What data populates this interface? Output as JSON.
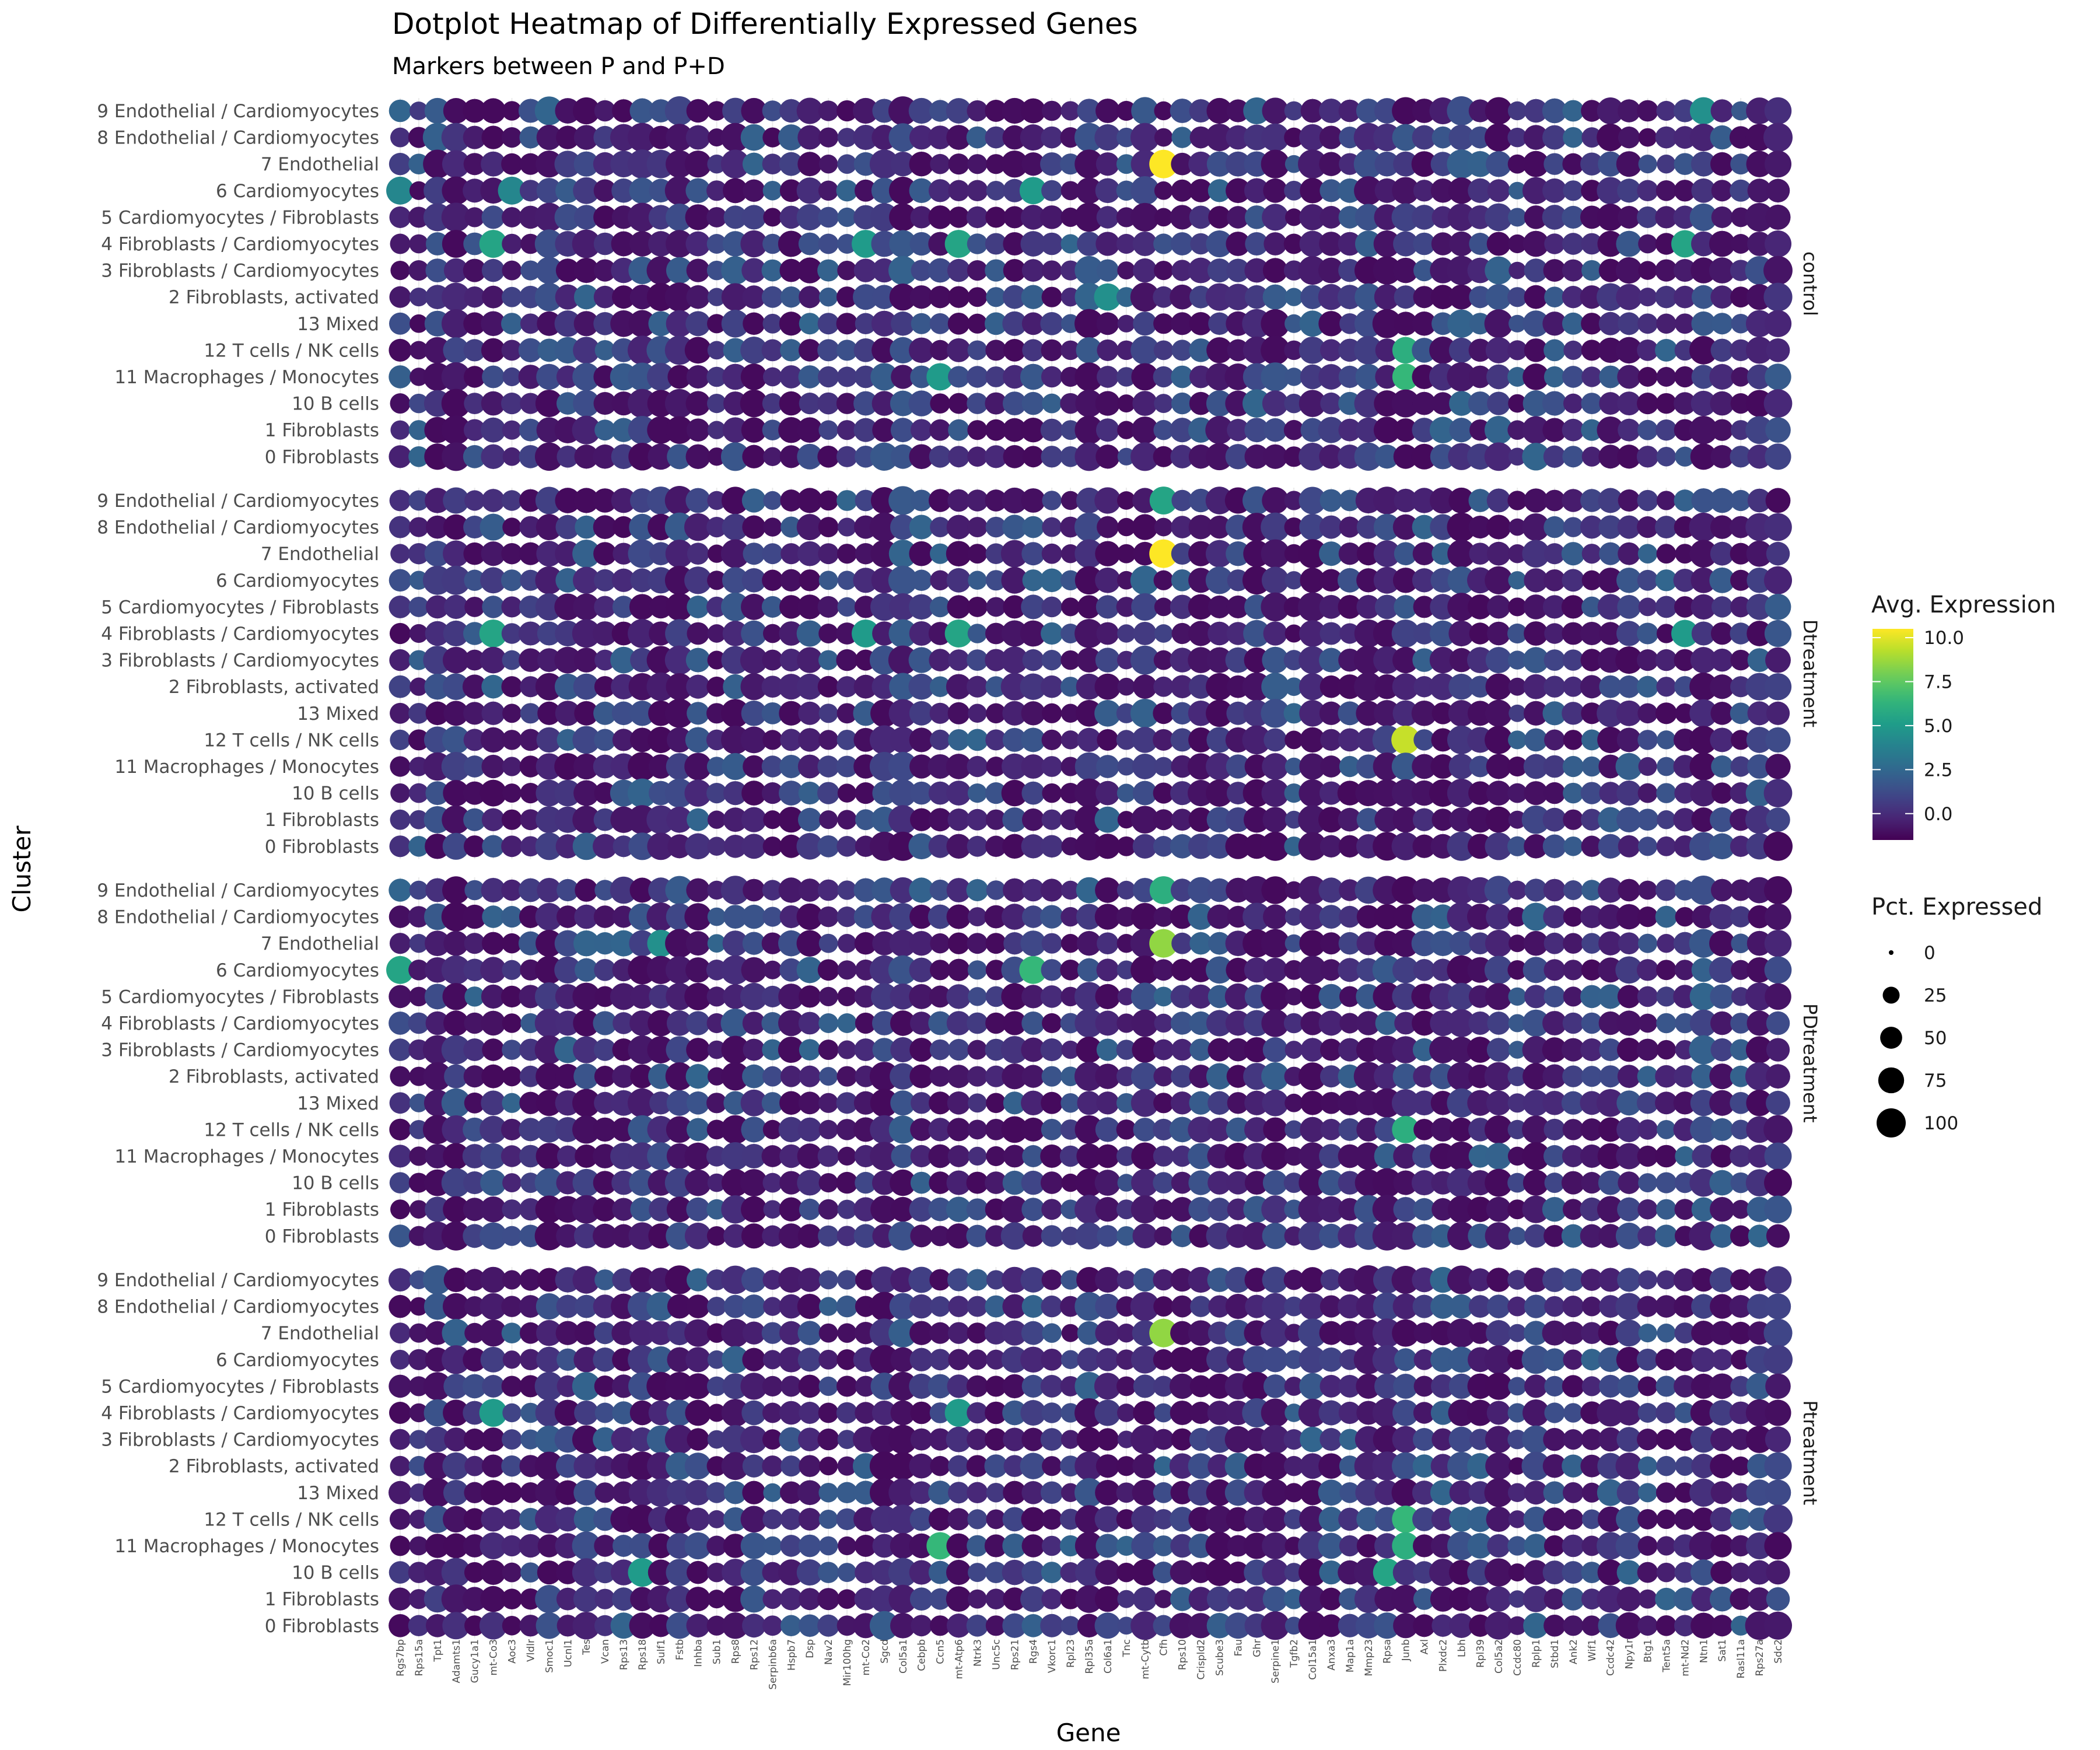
{
  "chart_data": {
    "type": "dotplot",
    "title": "Dotplot Heatmap of Differentially Expressed Genes",
    "subtitle": "Markers between P and P+D",
    "xlabel": "Gene",
    "ylabel": "Cluster",
    "clusters": [
      "9 Endothelial / Cardiomyocytes",
      "8 Endothelial / Cardiomyocytes",
      "7 Endothelial",
      "6 Cardiomyocytes",
      "5 Cardiomyocytes / Fibroblasts",
      "4 Fibroblasts / Cardiomyocytes",
      "3 Fibroblasts / Cardiomyocytes",
      "2 Fibroblasts, activated",
      "13 Mixed",
      "12 T cells / NK cells",
      "11 Macrophages / Monocytes",
      "10 B cells",
      "1 Fibroblasts",
      "0 Fibroblasts"
    ],
    "genes": [
      "Rgs7bp",
      "Rps15a",
      "Tpt1",
      "Adamts1",
      "Gucy1a1",
      "mt-Co3",
      "Aoc3",
      "Vldlr",
      "Smoc1",
      "Ucnl1",
      "Tes",
      "Vcan",
      "Rps13",
      "Rps18",
      "Sulf1",
      "Fstb",
      "Inhba",
      "Sub1",
      "Rps8",
      "Rps12",
      "Serpinb6a",
      "Hspb7",
      "Dsp",
      "Nav2",
      "Mir100hg",
      "mt-Co2",
      "Sgcd",
      "Col5a1",
      "Cebpb",
      "Ccn5",
      "mt-Atp6",
      "Ntrk3",
      "Unc5c",
      "Rps21",
      "Rgs4",
      "Vkorc1",
      "Rpl23",
      "Rpl35a",
      "Col6a1",
      "Tnc",
      "mt-Cytb",
      "Cfh",
      "Rps10",
      "Crispld2",
      "Scube3",
      "Fau",
      "Ghr",
      "Serpine1",
      "Tgfb2",
      "Col15a1",
      "Anxa3",
      "Map1a",
      "Mmp23",
      "Rpsa",
      "Junb",
      "Axl",
      "Plxdc2",
      "Lbh",
      "Rpl39",
      "Col5a2",
      "Ccdc80",
      "Rplp1",
      "Stbd1",
      "Ank2",
      "Wif1",
      "Ccdc42",
      "Npy1r",
      "Btg1",
      "Tent5a",
      "mt-Nd2",
      "Ntn1",
      "Sat1",
      "Rasl11a",
      "Rps27a",
      "Sdc2"
    ],
    "panels": [
      "control",
      "Dtreatment",
      "PDtreatment",
      "Ptreatment"
    ],
    "panel_labels": [
      "control",
      "Dtreatment",
      "PDtreatment",
      "Ptreatment"
    ],
    "color_legend": {
      "title": "Avg. Expression",
      "ticks": [
        0.0,
        2.5,
        5.0,
        7.5,
        10.0
      ],
      "tick_labels": [
        "0.0",
        "2.5",
        "5.0",
        "7.5",
        "10.0"
      ],
      "range": [
        -1.5,
        10.5
      ],
      "palette": "viridis"
    },
    "size_legend": {
      "title": "Pct. Expressed",
      "values": [
        0,
        25,
        50,
        75,
        100
      ],
      "labels": [
        "0",
        "25",
        "50",
        "75",
        "100"
      ]
    },
    "highlights": [
      {
        "panel": "control",
        "cluster": "7 Endothelial",
        "gene": "Cfh",
        "avg_expression": 10.5,
        "pct_expressed": 95
      },
      {
        "panel": "control",
        "cluster": "9 Endothelial / Cardiomyocytes",
        "gene": "Ntn1",
        "avg_expression": 4.5,
        "pct_expressed": 85
      },
      {
        "panel": "control",
        "cluster": "6 Cardiomyocytes",
        "gene": "Rgs7bp",
        "avg_expression": 4.0,
        "pct_expressed": 90
      },
      {
        "panel": "control",
        "cluster": "6 Cardiomyocytes",
        "gene": "Aoc3",
        "avg_expression": 4.0,
        "pct_expressed": 90
      },
      {
        "panel": "control",
        "cluster": "6 Cardiomyocytes",
        "gene": "Rgs4",
        "avg_expression": 5.0,
        "pct_expressed": 85
      },
      {
        "panel": "control",
        "cluster": "4 Fibroblasts / Cardiomyocytes",
        "gene": "mt-Co3",
        "avg_expression": 5.5,
        "pct_expressed": 90
      },
      {
        "panel": "control",
        "cluster": "4 Fibroblasts / Cardiomyocytes",
        "gene": "mt-Co2",
        "avg_expression": 5.0,
        "pct_expressed": 90
      },
      {
        "panel": "control",
        "cluster": "4 Fibroblasts / Cardiomyocytes",
        "gene": "mt-Atp6",
        "avg_expression": 5.5,
        "pct_expressed": 90
      },
      {
        "panel": "control",
        "cluster": "4 Fibroblasts / Cardiomyocytes",
        "gene": "mt-Nd2",
        "avg_expression": 5.5,
        "pct_expressed": 85
      },
      {
        "panel": "control",
        "cluster": "12 T cells / NK cells",
        "gene": "Junb",
        "avg_expression": 6.0,
        "pct_expressed": 80
      },
      {
        "panel": "control",
        "cluster": "11 Macrophages / Monocytes",
        "gene": "Junb",
        "avg_expression": 6.5,
        "pct_expressed": 80
      },
      {
        "panel": "control",
        "cluster": "11 Macrophages / Monocytes",
        "gene": "Ccn5",
        "avg_expression": 5.0,
        "pct_expressed": 85
      },
      {
        "panel": "control",
        "cluster": "2 Fibroblasts, activated",
        "gene": "Col6a1",
        "avg_expression": 4.5,
        "pct_expressed": 85
      },
      {
        "panel": "Dtreatment",
        "cluster": "7 Endothelial",
        "gene": "Cfh",
        "avg_expression": 10.5,
        "pct_expressed": 95
      },
      {
        "panel": "Dtreatment",
        "cluster": "9 Endothelial / Cardiomyocytes",
        "gene": "Cfh",
        "avg_expression": 5.5,
        "pct_expressed": 90
      },
      {
        "panel": "Dtreatment",
        "cluster": "12 T cells / NK cells",
        "gene": "Junb",
        "avg_expression": 9.5,
        "pct_expressed": 95
      },
      {
        "panel": "Dtreatment",
        "cluster": "4 Fibroblasts / Cardiomyocytes",
        "gene": "mt-Co3",
        "avg_expression": 5.5,
        "pct_expressed": 90
      },
      {
        "panel": "Dtreatment",
        "cluster": "4 Fibroblasts / Cardiomyocytes",
        "gene": "mt-Co2",
        "avg_expression": 5.0,
        "pct_expressed": 90
      },
      {
        "panel": "Dtreatment",
        "cluster": "4 Fibroblasts / Cardiomyocytes",
        "gene": "mt-Atp6",
        "avg_expression": 5.5,
        "pct_expressed": 90
      },
      {
        "panel": "Dtreatment",
        "cluster": "4 Fibroblasts / Cardiomyocytes",
        "gene": "mt-Nd2",
        "avg_expression": 5.0,
        "pct_expressed": 85
      },
      {
        "panel": "PDtreatment",
        "cluster": "7 Endothelial",
        "gene": "Cfh",
        "avg_expression": 8.5,
        "pct_expressed": 95
      },
      {
        "panel": "PDtreatment",
        "cluster": "9 Endothelial / Cardiomyocytes",
        "gene": "Cfh",
        "avg_expression": 6.0,
        "pct_expressed": 90
      },
      {
        "panel": "PDtreatment",
        "cluster": "6 Cardiomyocytes",
        "gene": "Rgs7bp",
        "avg_expression": 5.5,
        "pct_expressed": 90
      },
      {
        "panel": "PDtreatment",
        "cluster": "6 Cardiomyocytes",
        "gene": "Rgs4",
        "avg_expression": 6.5,
        "pct_expressed": 90
      },
      {
        "panel": "PDtreatment",
        "cluster": "12 T cells / NK cells",
        "gene": "Junb",
        "avg_expression": 6.0,
        "pct_expressed": 85
      },
      {
        "panel": "PDtreatment",
        "cluster": "7 Endothelial",
        "gene": "Sulf1",
        "avg_expression": 4.5,
        "pct_expressed": 85
      },
      {
        "panel": "Ptreatment",
        "cluster": "7 Endothelial",
        "gene": "Cfh",
        "avg_expression": 8.5,
        "pct_expressed": 95
      },
      {
        "panel": "Ptreatment",
        "cluster": "11 Macrophages / Monocytes",
        "gene": "Ccn5",
        "avg_expression": 6.5,
        "pct_expressed": 85
      },
      {
        "panel": "Ptreatment",
        "cluster": "12 T cells / NK cells",
        "gene": "Junb",
        "avg_expression": 6.5,
        "pct_expressed": 85
      },
      {
        "panel": "Ptreatment",
        "cluster": "11 Macrophages / Monocytes",
        "gene": "Junb",
        "avg_expression": 6.0,
        "pct_expressed": 85
      },
      {
        "panel": "Ptreatment",
        "cluster": "10 B cells",
        "gene": "Rpsa",
        "avg_expression": 5.5,
        "pct_expressed": 90
      },
      {
        "panel": "Ptreatment",
        "cluster": "10 B cells",
        "gene": "Rps18",
        "avg_expression": 5.0,
        "pct_expressed": 95
      },
      {
        "panel": "Ptreatment",
        "cluster": "4 Fibroblasts / Cardiomyocytes",
        "gene": "mt-Co3",
        "avg_expression": 5.0,
        "pct_expressed": 90
      },
      {
        "panel": "Ptreatment",
        "cluster": "4 Fibroblasts / Cardiomyocytes",
        "gene": "mt-Atp6",
        "avg_expression": 5.0,
        "pct_expressed": 90
      }
    ]
  }
}
